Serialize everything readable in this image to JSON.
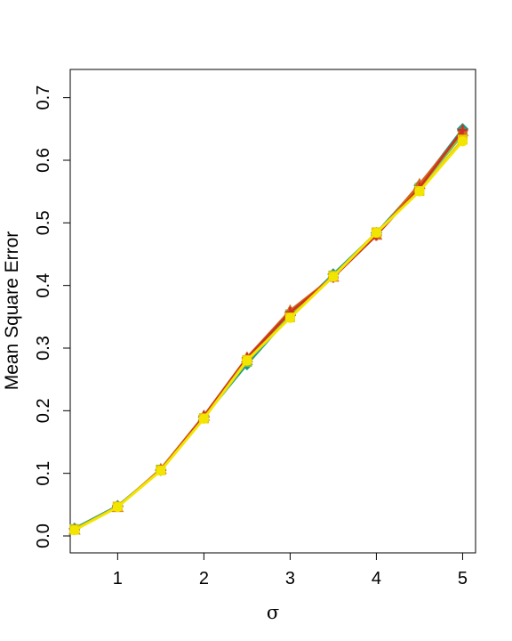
{
  "chart_data": {
    "type": "line",
    "title": "",
    "xlabel": "σ",
    "ylabel": "Mean Square Error",
    "xlim": [
      0.45,
      5.15
    ],
    "ylim": [
      -0.027,
      0.745
    ],
    "x_ticks": [
      1,
      2,
      3,
      4,
      5
    ],
    "x_tick_labels": [
      "1",
      "2",
      "3",
      "4",
      "5"
    ],
    "y_ticks": [
      0.0,
      0.1,
      0.2,
      0.3,
      0.4,
      0.5,
      0.6,
      0.7
    ],
    "y_tick_labels": [
      "0.0",
      "0.1",
      "0.2",
      "0.3",
      "0.4",
      "0.5",
      "0.6",
      "0.7"
    ],
    "grid": false,
    "legend": "none",
    "x": [
      0.5,
      1,
      1.5,
      2,
      2.5,
      3,
      3.5,
      4,
      4.5,
      5
    ],
    "series": [
      {
        "color": "#1a9a8a",
        "marker": "diamond",
        "values": [
          0.012,
          0.048,
          0.105,
          0.19,
          0.274,
          0.352,
          0.418,
          0.484,
          0.56,
          0.65
        ]
      },
      {
        "color": "#7fbf3f",
        "marker": "square",
        "values": [
          0.011,
          0.047,
          0.106,
          0.188,
          0.278,
          0.354,
          0.416,
          0.483,
          0.556,
          0.641
        ]
      },
      {
        "color": "#d2691e",
        "marker": "triangle",
        "values": [
          0.01,
          0.046,
          0.107,
          0.192,
          0.285,
          0.36,
          0.414,
          0.481,
          0.562,
          0.646
        ]
      },
      {
        "color": "#cc3322",
        "marker": "plus",
        "values": [
          0.01,
          0.047,
          0.105,
          0.191,
          0.284,
          0.357,
          0.413,
          0.48,
          0.556,
          0.648
        ]
      },
      {
        "color": "#e8c800",
        "marker": "square",
        "values": [
          0.01,
          0.047,
          0.105,
          0.188,
          0.281,
          0.349,
          0.415,
          0.485,
          0.551,
          0.633
        ]
      },
      {
        "color": "#f2e600",
        "marker": "circle",
        "values": [
          0.009,
          0.046,
          0.104,
          0.187,
          0.28,
          0.348,
          0.414,
          0.484,
          0.55,
          0.63
        ]
      }
    ]
  }
}
